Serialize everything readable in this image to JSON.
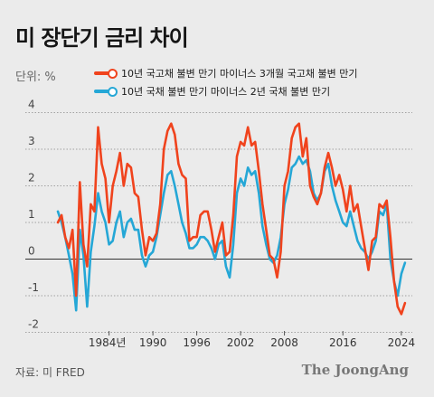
{
  "title": "미 장단기 금리 차이",
  "unit_label": "단위: %",
  "source": "자료: 미 FRED",
  "brand": "The JoongAng",
  "colors": {
    "series1": "#f0431d",
    "series2": "#25a7d6",
    "grid": "#8a8a8a"
  },
  "chart_data": {
    "type": "line",
    "title": "미 장단기 금리 차이",
    "ylabel": "단위: %",
    "ylim": [
      -2.2,
      4.4
    ],
    "y_ticks": [
      4,
      3,
      2,
      1,
      0,
      -1,
      -2
    ],
    "y_tick_labels": [
      "4",
      "3",
      "2",
      "1",
      "0",
      "-1",
      "-2"
    ],
    "xlim": [
      1976.5,
      2025.5
    ],
    "x_ticks": [
      1984,
      1990,
      1996,
      2002,
      2008,
      2016,
      2024
    ],
    "x_tick_labels": [
      "1984년",
      "1990",
      "1996",
      "2002",
      "2008",
      "2016",
      "2024"
    ],
    "grid": "horizontal",
    "legend_position": "top",
    "series": [
      {
        "name": "10년 국고채 불변 만기 마이너스 3개월 국고채 불변 만기",
        "x": [
          1977.0,
          1977.5,
          1978.0,
          1978.5,
          1979.0,
          1979.5,
          1980.0,
          1980.5,
          1981.0,
          1981.5,
          1982.0,
          1982.5,
          1983.0,
          1983.5,
          1984.0,
          1984.5,
          1985.0,
          1985.5,
          1986.0,
          1986.5,
          1987.0,
          1987.5,
          1988.0,
          1988.5,
          1989.0,
          1989.5,
          1990.0,
          1990.5,
          1991.0,
          1991.5,
          1992.0,
          1992.5,
          1993.0,
          1993.5,
          1994.0,
          1994.5,
          1995.0,
          1995.5,
          1996.0,
          1996.5,
          1997.0,
          1997.5,
          1998.0,
          1998.5,
          1999.0,
          1999.5,
          2000.0,
          2000.5,
          2001.0,
          2001.5,
          2002.0,
          2002.5,
          2003.0,
          2003.5,
          2004.0,
          2004.5,
          2005.0,
          2005.5,
          2006.0,
          2006.5,
          2007.0,
          2007.5,
          2008.0,
          2008.5,
          2009.0,
          2009.5,
          2010.0,
          2010.5,
          2011.0,
          2011.5,
          2012.0,
          2012.5,
          2013.0,
          2013.5,
          2014.0,
          2014.5,
          2015.0,
          2015.5,
          2016.0,
          2016.5,
          2017.0,
          2017.5,
          2018.0,
          2018.5,
          2019.0,
          2019.5,
          2020.0,
          2020.5,
          2021.0,
          2021.5,
          2022.0,
          2022.5,
          2023.0,
          2023.5,
          2024.0,
          2024.5
        ],
        "y": [
          1.0,
          1.2,
          0.6,
          0.3,
          0.8,
          -1.0,
          2.1,
          0.4,
          -0.2,
          1.5,
          1.3,
          3.6,
          2.6,
          2.2,
          1.0,
          2.0,
          2.4,
          2.9,
          2.0,
          2.6,
          2.5,
          1.8,
          1.7,
          0.8,
          0.1,
          0.6,
          0.5,
          0.7,
          1.5,
          3.0,
          3.5,
          3.7,
          3.4,
          2.6,
          2.3,
          2.2,
          0.5,
          0.6,
          0.6,
          1.2,
          1.3,
          1.3,
          0.8,
          0.2,
          0.6,
          1.0,
          0.1,
          0.2,
          1.2,
          2.8,
          3.2,
          3.1,
          3.6,
          3.1,
          3.2,
          2.4,
          1.5,
          0.8,
          0.1,
          0.0,
          -0.5,
          0.2,
          2.0,
          2.4,
          3.3,
          3.6,
          3.7,
          2.8,
          3.3,
          2.0,
          1.7,
          1.5,
          1.8,
          2.5,
          2.9,
          2.5,
          2.0,
          2.3,
          1.9,
          1.3,
          2.0,
          1.3,
          1.5,
          0.9,
          0.3,
          -0.3,
          0.5,
          0.6,
          1.5,
          1.4,
          1.6,
          0.6,
          -0.6,
          -1.3,
          -1.5,
          -1.2
        ]
      },
      {
        "name": "10년 국채 불변 만기 마이너스 2년 국채 불변 만기",
        "x": [
          1977.0,
          1977.5,
          1978.0,
          1978.5,
          1979.0,
          1979.5,
          1980.0,
          1980.5,
          1981.0,
          1981.5,
          1982.0,
          1982.5,
          1983.0,
          1983.5,
          1984.0,
          1984.5,
          1985.0,
          1985.5,
          1986.0,
          1986.5,
          1987.0,
          1987.5,
          1988.0,
          1988.5,
          1989.0,
          1989.5,
          1990.0,
          1990.5,
          1991.0,
          1991.5,
          1992.0,
          1992.5,
          1993.0,
          1993.5,
          1994.0,
          1994.5,
          1995.0,
          1995.5,
          1996.0,
          1996.5,
          1997.0,
          1997.5,
          1998.0,
          1998.5,
          1999.0,
          1999.5,
          2000.0,
          2000.5,
          2001.0,
          2001.5,
          2002.0,
          2002.5,
          2003.0,
          2003.5,
          2004.0,
          2004.5,
          2005.0,
          2005.5,
          2006.0,
          2006.5,
          2007.0,
          2007.5,
          2008.0,
          2008.5,
          2009.0,
          2009.5,
          2010.0,
          2010.5,
          2011.0,
          2011.5,
          2012.0,
          2012.5,
          2013.0,
          2013.5,
          2014.0,
          2014.5,
          2015.0,
          2015.5,
          2016.0,
          2016.5,
          2017.0,
          2017.5,
          2018.0,
          2018.5,
          2019.0,
          2019.5,
          2020.0,
          2020.5,
          2021.0,
          2021.5,
          2022.0,
          2022.5,
          2023.0,
          2023.5,
          2024.0,
          2024.5
        ],
        "y": [
          1.3,
          1.0,
          0.6,
          0.1,
          -0.4,
          -1.4,
          0.8,
          0.1,
          -1.3,
          0.2,
          0.9,
          1.8,
          1.3,
          1.0,
          0.4,
          0.5,
          1.0,
          1.3,
          0.6,
          1.0,
          1.1,
          0.8,
          0.8,
          0.1,
          -0.2,
          0.1,
          0.2,
          0.6,
          1.2,
          1.8,
          2.3,
          2.4,
          2.0,
          1.5,
          1.0,
          0.7,
          0.3,
          0.3,
          0.4,
          0.6,
          0.6,
          0.5,
          0.3,
          0.0,
          0.4,
          0.5,
          -0.2,
          -0.5,
          0.4,
          1.8,
          2.2,
          2.0,
          2.5,
          2.3,
          2.4,
          1.8,
          0.9,
          0.4,
          0.0,
          -0.1,
          0.1,
          0.6,
          1.5,
          1.9,
          2.5,
          2.6,
          2.8,
          2.6,
          2.7,
          2.4,
          1.8,
          1.6,
          1.8,
          2.4,
          2.6,
          2.0,
          1.6,
          1.3,
          1.0,
          0.9,
          1.3,
          0.9,
          0.5,
          0.3,
          0.2,
          0.0,
          0.2,
          0.5,
          1.3,
          1.2,
          1.5,
          0.0,
          -0.6,
          -1.0,
          -0.4,
          -0.1
        ]
      }
    ]
  }
}
